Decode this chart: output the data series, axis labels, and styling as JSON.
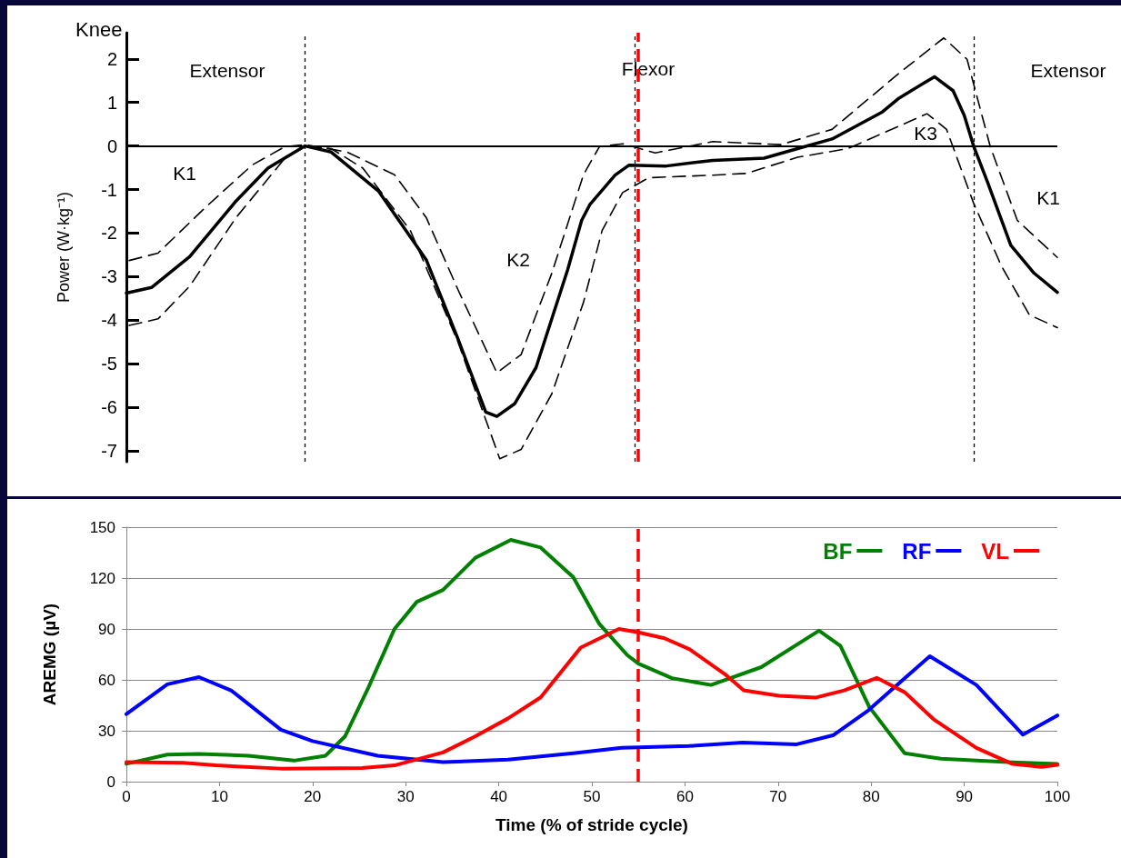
{
  "chart_data": [
    {
      "type": "line",
      "title": "Knee",
      "ylabel": "Power (W·kg⁻¹)",
      "xlim": [
        0,
        100
      ],
      "ylim": [
        -7.25,
        2.6
      ],
      "yticks": [
        -7,
        -6,
        -5,
        -4,
        -3,
        -2,
        -1,
        0,
        1,
        2
      ],
      "tick_labels": "y",
      "grid": false,
      "legend": false,
      "marker": "none",
      "series": [
        {
          "color": "#000000",
          "line_style": "solid",
          "x": [
            0,
            2.7,
            6.8,
            11.8,
            15.2,
            19.2,
            22,
            27.1,
            32.2,
            35.6,
            38.6,
            39.8,
            41.7,
            44,
            47.4,
            48.9,
            49.8,
            52.5,
            54,
            58,
            63,
            68.5,
            72.1,
            75.8,
            81.2,
            83,
            86.8,
            88.8,
            90,
            91,
            92.5,
            95,
            97.5,
            100
          ],
          "values": [
            -3.38,
            -3.25,
            -2.54,
            -1.26,
            -0.51,
            0,
            -0.14,
            -1.04,
            -2.61,
            -4.42,
            -6.11,
            -6.21,
            -5.92,
            -5.09,
            -2.84,
            -1.71,
            -1.34,
            -0.67,
            -0.44,
            -0.46,
            -0.33,
            -0.28,
            -0.06,
            0.16,
            0.78,
            1.1,
            1.59,
            1.27,
            0.7,
            0,
            -0.83,
            -2.28,
            -2.92,
            -3.36
          ]
        },
        {
          "color": "#000000",
          "line_style": "dashed",
          "x": [
            0.3,
            3.4,
            8.5,
            13.5,
            17,
            19.2,
            23.7,
            28.8,
            32.2,
            35.6,
            39.8,
            42.4,
            45.7,
            49.1,
            50.8,
            53.3,
            56.8,
            63,
            70.3,
            75.8,
            83,
            87.8,
            90.3,
            92.8,
            95.7,
            100
          ],
          "values": [
            -2.63,
            -2.46,
            -1.41,
            -0.44,
            -0.02,
            0.03,
            -0.14,
            -0.66,
            -1.64,
            -3.29,
            -5.21,
            -4.79,
            -2.92,
            -0.66,
            -0.02,
            0.05,
            -0.16,
            0.1,
            0.03,
            0.38,
            1.67,
            2.48,
            1.99,
            -0.02,
            -1.71,
            -2.56
          ]
        },
        {
          "color": "#000000",
          "line_style": "dashed",
          "x": [
            0.3,
            3.4,
            6.8,
            11.8,
            17,
            19.2,
            22,
            25.4,
            30.5,
            35.6,
            40.1,
            42.4,
            45.7,
            49.1,
            51.1,
            53.3,
            56.1,
            63,
            66.6,
            72.1,
            77.5,
            86,
            88.1,
            91,
            94,
            97,
            100
          ],
          "values": [
            -4.12,
            -3.97,
            -3.22,
            -1.64,
            -0.29,
            -0.02,
            -0.06,
            -0.51,
            -1.94,
            -4.49,
            -7.18,
            -6.97,
            -5.69,
            -3.59,
            -1.94,
            -1.07,
            -0.73,
            -0.67,
            -0.63,
            -0.26,
            -0.06,
            0.74,
            0.38,
            -1.31,
            -2.76,
            -3.88,
            -4.17
          ]
        }
      ],
      "ref_lines": [
        {
          "axis": "y",
          "value": 0,
          "color": "#000000",
          "line_style": "solid"
        },
        {
          "axis": "x",
          "value": 19.2,
          "color": "#000000",
          "line_style": "dotted"
        },
        {
          "axis": "x",
          "value": 54.6,
          "color": "#000000",
          "line_style": "dotted"
        },
        {
          "axis": "x",
          "value": 91,
          "color": "#000000",
          "line_style": "dotted"
        },
        {
          "axis": "x",
          "value": 55,
          "color": "#ff0000",
          "line_style": "dashed"
        }
      ],
      "annotations": [
        "Extensor",
        "Flexor",
        "Extensor",
        "K1",
        "K2",
        "K3",
        "K1"
      ]
    },
    {
      "type": "line",
      "xlabel": "Time (% of stride cycle)",
      "ylabel": "AREMG (µV)",
      "xlim": [
        0,
        100
      ],
      "ylim": [
        0,
        150
      ],
      "xticks": [
        0,
        10,
        20,
        30,
        40,
        50,
        60,
        70,
        80,
        90,
        100
      ],
      "yticks": [
        0,
        30,
        60,
        90,
        120,
        150
      ],
      "grid": "y",
      "legend": "top right",
      "marker": "none",
      "line_style": "solid",
      "series": [
        {
          "name": "BF",
          "color": "#008000",
          "x": [
            0,
            4.4,
            7.8,
            13.1,
            18,
            21.4,
            23.5,
            26,
            28.8,
            31.2,
            34,
            37.5,
            41.3,
            44.5,
            48,
            50.8,
            53.8,
            55,
            58.6,
            62.8,
            68.2,
            74.4,
            76.7,
            79.8,
            83.6,
            87.5,
            95.2,
            100
          ],
          "values": [
            10.5,
            15.9,
            16.3,
            15.3,
            12.4,
            15.3,
            26.8,
            55.5,
            90,
            106,
            113,
            132,
            142.5,
            138,
            120.5,
            93,
            74.6,
            69.6,
            61,
            57,
            67.5,
            89,
            80,
            44,
            16.7,
            13.5,
            11.4,
            10.4
          ]
        },
        {
          "name": "RF",
          "color": "#0000ff",
          "x": [
            0,
            4.4,
            7.8,
            11.3,
            16.6,
            20,
            27,
            34,
            41,
            48,
            53.2,
            60.4,
            66.2,
            72,
            75.9,
            79.7,
            83.6,
            86.3,
            91.3,
            96.3,
            100
          ],
          "values": [
            39.8,
            57.4,
            61.6,
            53.6,
            30.6,
            23.9,
            15.3,
            11.5,
            13,
            16.8,
            20,
            21,
            23,
            22,
            27.3,
            42,
            61,
            73.9,
            57,
            27.7,
            39
          ]
        },
        {
          "name": "VL",
          "color": "#ff0000",
          "x": [
            0,
            6.1,
            9.6,
            16.6,
            25.3,
            28.8,
            34,
            37.5,
            41,
            44.5,
            48.8,
            52.9,
            55,
            57.8,
            60.5,
            64.3,
            66.3,
            70.1,
            74,
            77.1,
            80.6,
            83.6,
            86.7,
            91.3,
            95.2,
            98.3,
            100
          ],
          "values": [
            11.5,
            11.1,
            9.6,
            7.7,
            8,
            9.6,
            17.2,
            26.8,
            37.3,
            49.7,
            79,
            90,
            88,
            84.5,
            78,
            63.3,
            53.8,
            50.6,
            49.5,
            53.8,
            61.2,
            52.7,
            36.8,
            19.9,
            10.4,
            8.7,
            9.9
          ]
        }
      ],
      "ref_lines": [
        {
          "axis": "x",
          "value": 55,
          "color": "#ff0000",
          "line_style": "dashed"
        }
      ]
    }
  ]
}
